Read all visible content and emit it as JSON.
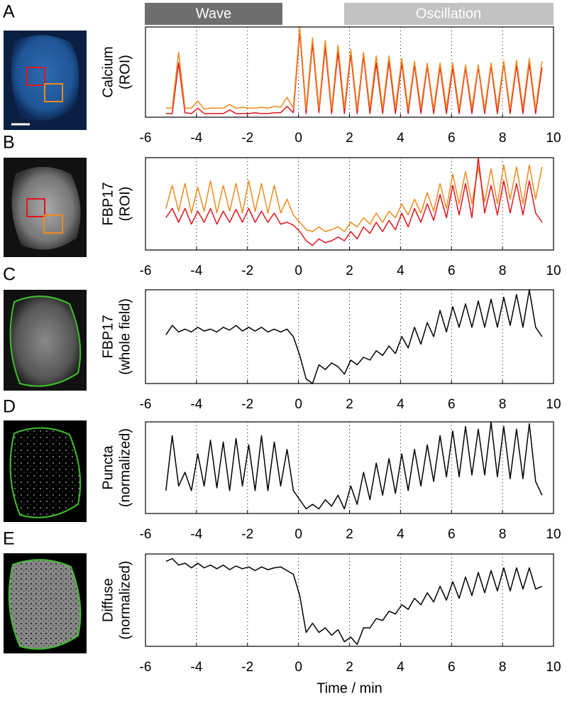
{
  "header": {
    "wave": "Wave",
    "oscillation": "Oscillation"
  },
  "chart_data": [
    {
      "type": "line",
      "panel": "A",
      "ylabel": [
        "Calcium",
        "(ROI)"
      ],
      "x": [
        -5.2,
        -4.95,
        -4.7,
        -4.45,
        -4.2,
        -3.95,
        -3.7,
        -3.45,
        -3.2,
        -2.95,
        -2.7,
        -2.45,
        -2.2,
        -1.95,
        -1.7,
        -1.45,
        -1.2,
        -0.95,
        -0.7,
        -0.45,
        -0.2,
        0.05,
        0.3,
        0.55,
        0.8,
        1.05,
        1.3,
        1.55,
        1.8,
        2.05,
        2.3,
        2.55,
        2.8,
        3.05,
        3.3,
        3.55,
        3.8,
        4.05,
        4.3,
        4.55,
        4.8,
        5.05,
        5.3,
        5.55,
        5.8,
        6.05,
        6.3,
        6.55,
        6.8,
        7.05,
        7.3,
        7.55,
        7.8,
        8.05,
        8.3,
        8.55,
        8.8,
        9.05,
        9.3,
        9.55
      ],
      "series": [
        {
          "color": "#e0141e",
          "values": [
            0.04,
            0.04,
            0.6,
            0.05,
            0.04,
            0.1,
            0.04,
            0.04,
            0.04,
            0.04,
            0.08,
            0.04,
            0.04,
            0.04,
            0.05,
            0.04,
            0.04,
            0.05,
            0.05,
            0.12,
            0.05,
            0.95,
            0.04,
            0.82,
            0.05,
            0.78,
            0.04,
            0.72,
            0.04,
            0.7,
            0.04,
            0.68,
            0.04,
            0.6,
            0.04,
            0.62,
            0.04,
            0.6,
            0.04,
            0.58,
            0.04,
            0.57,
            0.04,
            0.56,
            0.04,
            0.55,
            0.04,
            0.55,
            0.04,
            0.56,
            0.04,
            0.57,
            0.04,
            0.6,
            0.04,
            0.58,
            0.04,
            0.6,
            0.04,
            0.55
          ]
        },
        {
          "color": "#f08a1e",
          "values": [
            0.1,
            0.1,
            0.72,
            0.1,
            0.1,
            0.18,
            0.09,
            0.1,
            0.1,
            0.1,
            0.14,
            0.1,
            0.11,
            0.1,
            0.1,
            0.11,
            0.1,
            0.12,
            0.11,
            0.22,
            0.1,
            1.0,
            0.09,
            0.88,
            0.1,
            0.85,
            0.09,
            0.8,
            0.1,
            0.75,
            0.09,
            0.72,
            0.1,
            0.68,
            0.09,
            0.68,
            0.1,
            0.65,
            0.09,
            0.62,
            0.1,
            0.6,
            0.09,
            0.6,
            0.1,
            0.6,
            0.09,
            0.58,
            0.1,
            0.58,
            0.09,
            0.6,
            0.1,
            0.62,
            0.09,
            0.63,
            0.1,
            0.65,
            0.09,
            0.62
          ]
        }
      ],
      "xlim": [
        -6,
        10
      ],
      "xticks": [
        -6,
        -4,
        -2,
        0,
        2,
        4,
        6,
        8,
        10
      ],
      "ylim": [
        0,
        1
      ],
      "grid": true
    },
    {
      "type": "line",
      "panel": "B",
      "ylabel": [
        "FBP17",
        "(ROI)"
      ],
      "x": [
        -5.2,
        -4.95,
        -4.7,
        -4.45,
        -4.2,
        -3.95,
        -3.7,
        -3.45,
        -3.2,
        -2.95,
        -2.7,
        -2.45,
        -2.2,
        -1.95,
        -1.7,
        -1.45,
        -1.2,
        -0.95,
        -0.7,
        -0.45,
        -0.2,
        0.05,
        0.3,
        0.55,
        0.8,
        1.05,
        1.3,
        1.55,
        1.8,
        2.05,
        2.3,
        2.55,
        2.8,
        3.05,
        3.3,
        3.55,
        3.8,
        4.05,
        4.3,
        4.55,
        4.8,
        5.05,
        5.3,
        5.55,
        5.8,
        6.05,
        6.3,
        6.55,
        6.8,
        7.05,
        7.3,
        7.55,
        7.8,
        8.05,
        8.3,
        8.55,
        8.8,
        9.05,
        9.3,
        9.55
      ],
      "series": [
        {
          "color": "#f08a1e",
          "values": [
            0.45,
            0.7,
            0.42,
            0.72,
            0.4,
            0.68,
            0.42,
            0.75,
            0.4,
            0.7,
            0.42,
            0.72,
            0.4,
            0.75,
            0.42,
            0.72,
            0.4,
            0.7,
            0.4,
            0.55,
            0.38,
            0.3,
            0.22,
            0.2,
            0.25,
            0.2,
            0.22,
            0.25,
            0.2,
            0.3,
            0.25,
            0.35,
            0.28,
            0.4,
            0.3,
            0.42,
            0.35,
            0.5,
            0.38,
            0.55,
            0.4,
            0.62,
            0.42,
            0.72,
            0.45,
            0.82,
            0.5,
            0.85,
            0.5,
            0.9,
            0.52,
            0.88,
            0.5,
            0.92,
            0.55,
            0.9,
            0.5,
            0.92,
            0.55,
            0.9
          ]
        },
        {
          "color": "#e0141e",
          "values": [
            0.35,
            0.45,
            0.3,
            0.45,
            0.28,
            0.42,
            0.3,
            0.45,
            0.28,
            0.42,
            0.3,
            0.44,
            0.3,
            0.45,
            0.3,
            0.42,
            0.3,
            0.4,
            0.28,
            0.3,
            0.27,
            0.2,
            0.1,
            0.05,
            0.12,
            0.08,
            0.1,
            0.14,
            0.1,
            0.2,
            0.12,
            0.25,
            0.18,
            0.3,
            0.2,
            0.32,
            0.22,
            0.4,
            0.25,
            0.45,
            0.3,
            0.5,
            0.32,
            0.6,
            0.35,
            0.7,
            0.38,
            0.72,
            0.35,
            1.0,
            0.4,
            0.7,
            0.38,
            0.75,
            0.4,
            0.72,
            0.38,
            0.75,
            0.4,
            0.3
          ]
        }
      ],
      "xlim": [
        -6,
        10
      ],
      "xticks": [
        -6,
        -4,
        -2,
        0,
        2,
        4,
        6,
        8,
        10
      ],
      "ylim": [
        0,
        1
      ],
      "grid": true
    },
    {
      "type": "line",
      "panel": "C",
      "ylabel": [
        "FBP17",
        "(whole field)"
      ],
      "x": [
        -5.2,
        -4.95,
        -4.7,
        -4.45,
        -4.2,
        -3.95,
        -3.7,
        -3.45,
        -3.2,
        -2.95,
        -2.7,
        -2.45,
        -2.2,
        -1.95,
        -1.7,
        -1.45,
        -1.2,
        -0.95,
        -0.7,
        -0.45,
        -0.2,
        0.05,
        0.3,
        0.55,
        0.8,
        1.05,
        1.3,
        1.55,
        1.8,
        2.05,
        2.3,
        2.55,
        2.8,
        3.05,
        3.3,
        3.55,
        3.8,
        4.05,
        4.3,
        4.55,
        4.8,
        5.05,
        5.3,
        5.55,
        5.8,
        6.05,
        6.3,
        6.55,
        6.8,
        7.05,
        7.3,
        7.55,
        7.8,
        8.05,
        8.3,
        8.55,
        8.8,
        9.05,
        9.3,
        9.55
      ],
      "series": [
        {
          "color": "#000000",
          "values": [
            0.52,
            0.62,
            0.55,
            0.58,
            0.55,
            0.6,
            0.56,
            0.58,
            0.55,
            0.6,
            0.57,
            0.62,
            0.56,
            0.6,
            0.56,
            0.6,
            0.55,
            0.58,
            0.55,
            0.58,
            0.5,
            0.3,
            0.05,
            0.0,
            0.2,
            0.15,
            0.22,
            0.18,
            0.1,
            0.25,
            0.2,
            0.28,
            0.25,
            0.35,
            0.3,
            0.4,
            0.32,
            0.5,
            0.38,
            0.6,
            0.42,
            0.65,
            0.5,
            0.78,
            0.55,
            0.82,
            0.6,
            0.85,
            0.6,
            0.88,
            0.6,
            0.9,
            0.6,
            0.92,
            0.62,
            0.95,
            0.6,
            1.0,
            0.6,
            0.5
          ]
        }
      ],
      "xlim": [
        -6,
        10
      ],
      "xticks": [
        -6,
        -4,
        -2,
        0,
        2,
        4,
        6,
        8,
        10
      ],
      "ylim": [
        0,
        1
      ],
      "grid": true
    },
    {
      "type": "line",
      "panel": "D",
      "ylabel": [
        "Puncta",
        "(normalized)"
      ],
      "x": [
        -5.2,
        -4.95,
        -4.7,
        -4.45,
        -4.2,
        -3.95,
        -3.7,
        -3.45,
        -3.2,
        -2.95,
        -2.7,
        -2.45,
        -2.2,
        -1.95,
        -1.7,
        -1.45,
        -1.2,
        -0.95,
        -0.7,
        -0.45,
        -0.2,
        0.05,
        0.3,
        0.55,
        0.8,
        1.05,
        1.3,
        1.55,
        1.8,
        2.05,
        2.3,
        2.55,
        2.8,
        3.05,
        3.3,
        3.55,
        3.8,
        4.05,
        4.3,
        4.55,
        4.8,
        5.05,
        5.3,
        5.55,
        5.8,
        6.05,
        6.3,
        6.55,
        6.8,
        7.05,
        7.3,
        7.55,
        7.8,
        8.05,
        8.3,
        8.55,
        8.8,
        9.05,
        9.3,
        9.55
      ],
      "series": [
        {
          "color": "#000000",
          "values": [
            0.25,
            0.85,
            0.3,
            0.45,
            0.25,
            0.65,
            0.3,
            0.8,
            0.28,
            0.78,
            0.25,
            0.82,
            0.3,
            0.75,
            0.25,
            0.85,
            0.25,
            0.78,
            0.3,
            0.7,
            0.25,
            0.15,
            0.05,
            0.1,
            0.05,
            0.15,
            0.08,
            0.2,
            0.05,
            0.3,
            0.1,
            0.45,
            0.15,
            0.55,
            0.2,
            0.6,
            0.22,
            0.65,
            0.25,
            0.7,
            0.3,
            0.75,
            0.35,
            0.85,
            0.4,
            0.9,
            0.4,
            0.95,
            0.42,
            0.92,
            0.42,
            1.0,
            0.4,
            0.95,
            0.38,
            0.92,
            0.38,
            0.98,
            0.35,
            0.2
          ]
        }
      ],
      "xlim": [
        -6,
        10
      ],
      "xticks": [
        -6,
        -4,
        -2,
        0,
        2,
        4,
        6,
        8,
        10
      ],
      "ylim": [
        0,
        1
      ],
      "grid": true
    },
    {
      "type": "line",
      "panel": "E",
      "ylabel": [
        "Diffuse",
        "(normalized)"
      ],
      "xlabel": "Time / min",
      "x": [
        -5.2,
        -4.95,
        -4.7,
        -4.45,
        -4.2,
        -3.95,
        -3.7,
        -3.45,
        -3.2,
        -2.95,
        -2.7,
        -2.45,
        -2.2,
        -1.95,
        -1.7,
        -1.45,
        -1.2,
        -0.95,
        -0.7,
        -0.45,
        -0.2,
        0.05,
        0.3,
        0.55,
        0.8,
        1.05,
        1.3,
        1.55,
        1.8,
        2.05,
        2.3,
        2.55,
        2.8,
        3.05,
        3.3,
        3.55,
        3.8,
        4.05,
        4.3,
        4.55,
        4.8,
        5.05,
        5.3,
        5.55,
        5.8,
        6.05,
        6.3,
        6.55,
        6.8,
        7.05,
        7.3,
        7.55,
        7.8,
        8.05,
        8.3,
        8.55,
        8.8,
        9.05,
        9.3,
        9.55
      ],
      "series": [
        {
          "color": "#000000",
          "values": [
            0.92,
            0.95,
            0.88,
            0.9,
            0.85,
            0.9,
            0.85,
            0.88,
            0.84,
            0.88,
            0.83,
            0.87,
            0.84,
            0.86,
            0.82,
            0.86,
            0.83,
            0.85,
            0.86,
            0.82,
            0.78,
            0.55,
            0.15,
            0.25,
            0.15,
            0.2,
            0.12,
            0.18,
            0.05,
            0.1,
            0.02,
            0.2,
            0.2,
            0.3,
            0.28,
            0.38,
            0.35,
            0.45,
            0.4,
            0.52,
            0.45,
            0.58,
            0.48,
            0.65,
            0.5,
            0.7,
            0.52,
            0.75,
            0.55,
            0.8,
            0.58,
            0.82,
            0.6,
            0.85,
            0.6,
            0.85,
            0.62,
            0.85,
            0.62,
            0.65
          ]
        }
      ],
      "xlim": [
        -6,
        10
      ],
      "xticks": [
        -6,
        -4,
        -2,
        0,
        2,
        4,
        6,
        8,
        10
      ],
      "ylim": [
        0,
        1
      ],
      "grid": true
    }
  ]
}
